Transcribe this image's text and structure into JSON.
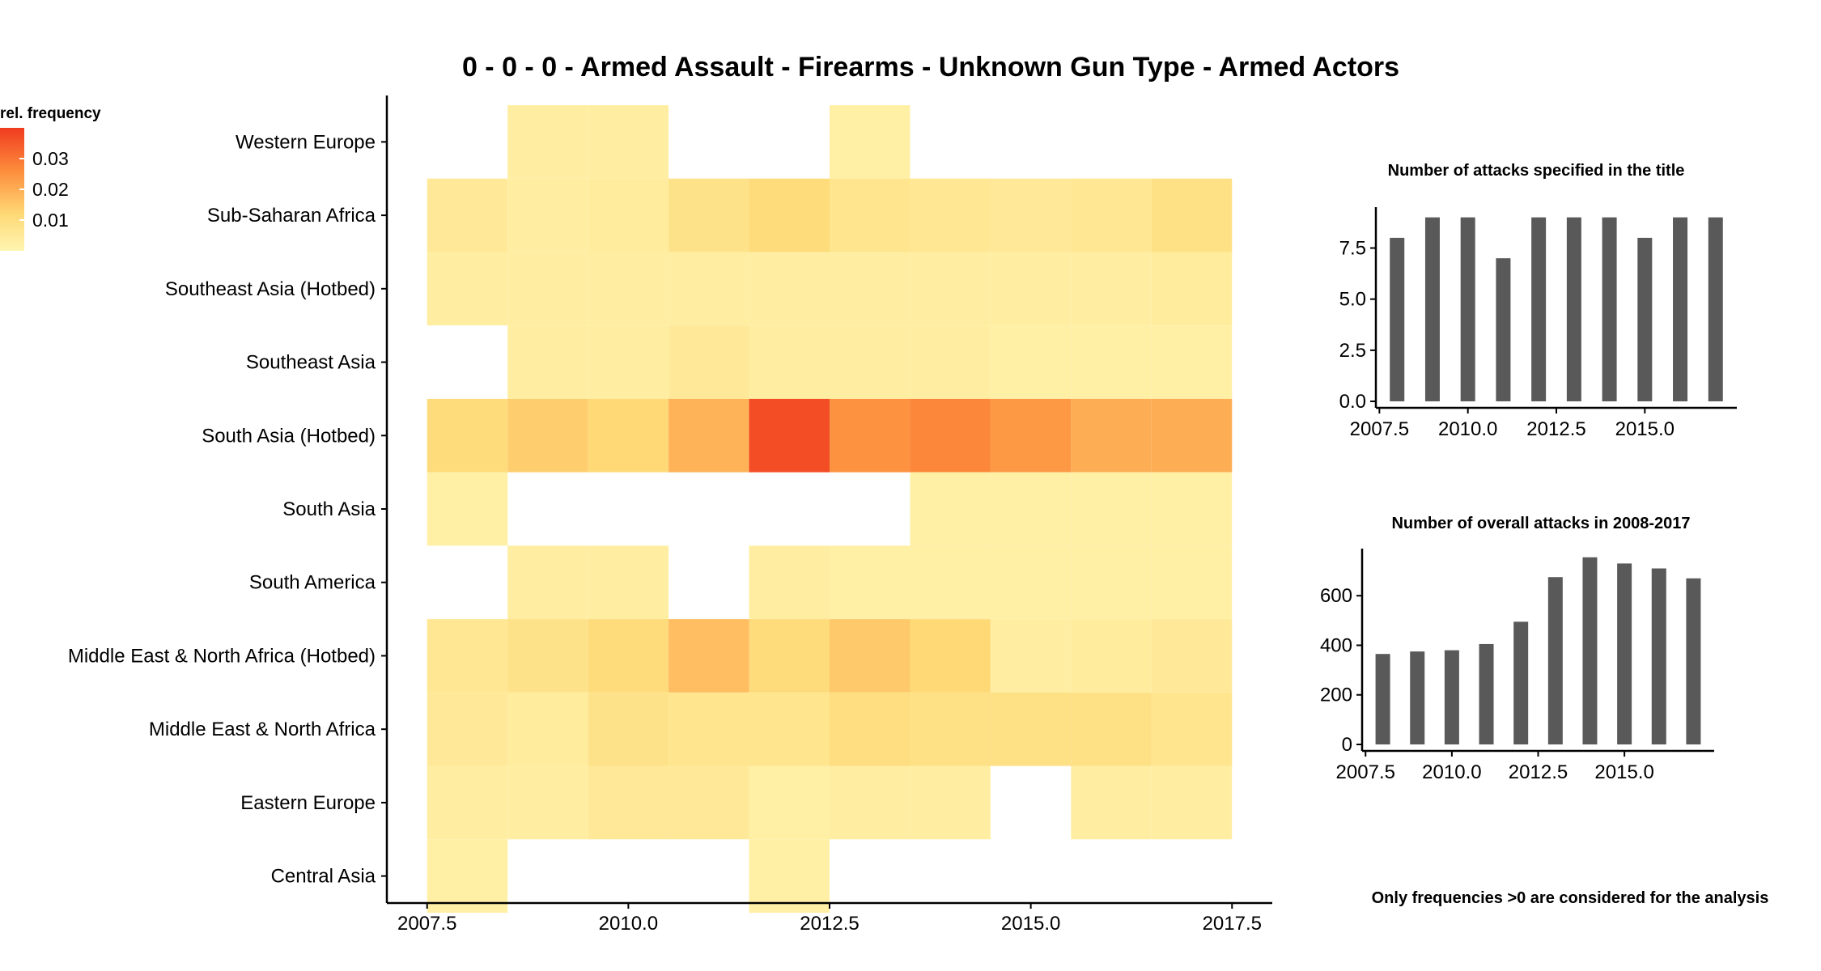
{
  "chart_data": [
    {
      "type": "heatmap",
      "title": "0 - 0 - 0 - Armed Assault - Firearms - Unknown Gun Type - Armed Actors",
      "xlabel": "",
      "ylabel": "",
      "x": [
        2008,
        2009,
        2010,
        2011,
        2012,
        2013,
        2014,
        2015,
        2016,
        2017
      ],
      "xlim": [
        2007.5,
        2017.5
      ],
      "xticks": [
        "2007.5",
        "2010.0",
        "2012.5",
        "2015.0",
        "2017.5"
      ],
      "y": [
        "Western Europe",
        "Sub-Saharan Africa",
        "Southeast Asia (Hotbed)",
        "Southeast Asia",
        "South Asia (Hotbed)",
        "South Asia",
        "South America",
        "Middle East & North Africa (Hotbed)",
        "Middle East & North Africa",
        "Eastern Europe",
        "Central Asia"
      ],
      "values": [
        [
          null,
          0.003,
          0.003,
          null,
          null,
          0.002,
          null,
          null,
          null,
          null
        ],
        [
          0.005,
          0.003,
          0.004,
          0.008,
          0.011,
          0.007,
          0.006,
          0.005,
          0.006,
          0.009
        ],
        [
          0.003,
          0.003,
          0.003,
          0.003,
          0.003,
          0.003,
          0.003,
          0.003,
          0.003,
          0.004
        ],
        [
          null,
          0.003,
          0.003,
          0.005,
          0.003,
          0.003,
          0.003,
          0.002,
          0.002,
          0.002
        ],
        [
          0.011,
          0.014,
          0.012,
          0.019,
          0.037,
          0.025,
          0.027,
          0.024,
          0.02,
          0.02
        ],
        [
          0.002,
          null,
          null,
          null,
          null,
          null,
          0.002,
          0.002,
          0.002,
          0.002
        ],
        [
          null,
          0.003,
          0.003,
          null,
          0.003,
          0.002,
          0.002,
          0.002,
          0.002,
          0.002
        ],
        [
          0.006,
          0.008,
          0.011,
          0.017,
          0.011,
          0.015,
          0.012,
          0.003,
          0.004,
          0.005
        ],
        [
          0.005,
          0.004,
          0.008,
          0.007,
          0.007,
          0.01,
          0.009,
          0.009,
          0.009,
          0.007
        ],
        [
          0.003,
          0.003,
          0.005,
          0.005,
          0.002,
          0.003,
          0.003,
          null,
          0.003,
          0.003
        ],
        [
          0.002,
          null,
          null,
          null,
          0.002,
          null,
          null,
          null,
          null,
          null
        ]
      ],
      "legend": {
        "title": "rel. frequency",
        "ticks": [
          "0.01",
          "0.02",
          "0.03"
        ],
        "tick_values": [
          0.01,
          0.02,
          0.03
        ],
        "range": [
          0,
          0.04
        ],
        "colors": [
          "#fff5b0",
          "#fed976",
          "#fd8d3c",
          "#f03b20"
        ]
      }
    },
    {
      "type": "bar",
      "title": "Number of attacks specified in the title",
      "x": [
        2008,
        2009,
        2010,
        2011,
        2012,
        2013,
        2014,
        2015,
        2016,
        2017
      ],
      "values": [
        8,
        9,
        9,
        7,
        9,
        9,
        9,
        8,
        9,
        9
      ],
      "xlim": [
        2007.5,
        2017.5
      ],
      "ylim": [
        0,
        9.5
      ],
      "xticks": [
        "2007.5",
        "2010.0",
        "2012.5",
        "2015.0"
      ],
      "yticks": [
        "0.0",
        "2.5",
        "5.0",
        "7.5"
      ],
      "ytick_values": [
        0,
        2.5,
        5,
        7.5
      ],
      "color": "#595959"
    },
    {
      "type": "bar",
      "title": "Number of overall attacks in 2008-2017",
      "x": [
        2008,
        2009,
        2010,
        2011,
        2012,
        2013,
        2014,
        2015,
        2016,
        2017
      ],
      "values": [
        365,
        375,
        380,
        405,
        495,
        675,
        755,
        730,
        710,
        670
      ],
      "xlim": [
        2007.5,
        2017.5
      ],
      "ylim": [
        0,
        790
      ],
      "xticks": [
        "2007.5",
        "2010.0",
        "2012.5",
        "2015.0"
      ],
      "yticks": [
        "0",
        "200",
        "400",
        "600"
      ],
      "ytick_values": [
        0,
        200,
        400,
        600
      ],
      "color": "#595959"
    }
  ],
  "footnote": "Only frequencies >0 are considered for the analysis"
}
